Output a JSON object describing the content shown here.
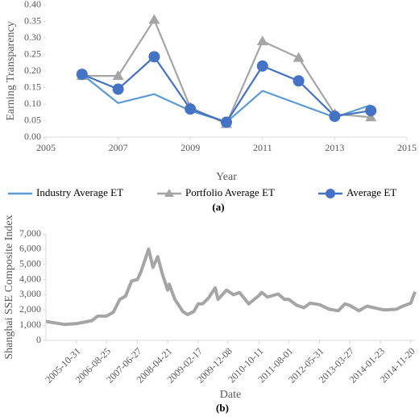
{
  "chart_data": [
    {
      "type": "line",
      "xlabel": "Year",
      "ylabel": "Earning Transparency",
      "caption": "(a)",
      "x": [
        2006,
        2007,
        2008,
        2009,
        2010,
        2011,
        2012,
        2013,
        2014
      ],
      "series": [
        {
          "name": "Industry Average ET",
          "color": "#5b9bd5",
          "values": [
            0.19,
            0.103,
            0.13,
            0.08,
            0.045,
            0.14,
            0.1,
            0.06,
            0.097
          ]
        },
        {
          "name": "Portfolio Average ET",
          "color": "#a5a5a5",
          "marker": "triangle",
          "values": [
            0.185,
            0.185,
            0.355,
            0.09,
            0.04,
            0.29,
            0.24,
            0.07,
            0.06
          ]
        },
        {
          "name": "Average ET",
          "color": "#4472c4",
          "marker": "circle",
          "values": [
            0.19,
            0.145,
            0.243,
            0.085,
            0.045,
            0.215,
            0.17,
            0.063,
            0.08
          ]
        }
      ],
      "xlim": [
        2005,
        2015
      ],
      "xticks": [
        2005,
        2007,
        2009,
        2011,
        2013,
        2015
      ],
      "ylim": [
        0,
        0.4
      ],
      "yticks": [
        {
          "value": 0,
          "label": "0.00"
        },
        {
          "value": 0.05,
          "label": "0.05"
        },
        {
          "value": 0.1,
          "label": "0.10"
        },
        {
          "value": 0.15,
          "label": "0.15"
        },
        {
          "value": 0.2,
          "label": "0.20"
        },
        {
          "value": 0.25,
          "label": "0.25"
        },
        {
          "value": 0.3,
          "label": "0.30"
        },
        {
          "value": 0.35,
          "label": "0.35"
        },
        {
          "value": 0.4,
          "label": "0.40"
        }
      ],
      "legend": "bottom"
    },
    {
      "type": "line",
      "xlabel": "Date",
      "ylabel": "Shanghai SSE Composite Index",
      "caption": "(b)",
      "color": "#a5a5a5",
      "x": [
        "2005-01-04",
        "2005-04-01",
        "2005-07-01",
        "2005-10-31",
        "2006-01-04",
        "2006-04-03",
        "2006-06-01",
        "2006-08-25",
        "2006-11-01",
        "2007-01-04",
        "2007-03-01",
        "2007-05-01",
        "2007-06-27",
        "2007-08-01",
        "2007-10-16",
        "2007-11-28",
        "2008-01-14",
        "2008-03-03",
        "2008-04-21",
        "2008-05-06",
        "2008-07-01",
        "2008-09-18",
        "2008-11-04",
        "2009-01-05",
        "2009-02-17",
        "2009-04-01",
        "2009-06-01",
        "2009-08-04",
        "2009-09-01",
        "2009-11-24",
        "2009-12-08",
        "2010-02-01",
        "2010-04-01",
        "2010-07-02",
        "2010-10-11",
        "2010-11-08",
        "2011-01-04",
        "2011-04-18",
        "2011-06-20",
        "2011-08-01",
        "2011-10-21",
        "2011-12-28",
        "2012-03-01",
        "2012-05-31",
        "2012-09-03",
        "2012-12-03",
        "2013-02-06",
        "2013-03-27",
        "2013-06-25",
        "2013-09-12",
        "2014-01-23",
        "2014-03-11",
        "2014-07-01",
        "2014-09-01",
        "2014-11-20",
        "2014-12-31"
      ],
      "values": [
        1243,
        1150,
        1050,
        1100,
        1180,
        1300,
        1600,
        1600,
        1850,
        2700,
        2900,
        3900,
        4000,
        4500,
        6000,
        4800,
        5500,
        4300,
        3300,
        3700,
        2700,
        1900,
        1700,
        1900,
        2400,
        2400,
        2800,
        3450,
        2700,
        3300,
        3250,
        3000,
        3150,
        2400,
        2950,
        3150,
        2850,
        3050,
        2700,
        2700,
        2300,
        2150,
        2450,
        2350,
        2050,
        1950,
        2400,
        2300,
        1950,
        2250,
        2050,
        2000,
        2050,
        2250,
        2450,
        3200
      ],
      "xticks": [
        "2005-10-31",
        "2006-08-25",
        "2007-06-27",
        "2008-04-21",
        "2009-02-17",
        "2009-12-08",
        "2010-10-11",
        "2011-08-01",
        "2012-05-31",
        "2013-03-27",
        "2014-01-23",
        "2014-11-20"
      ],
      "ylim": [
        0,
        7000
      ],
      "yticks": [
        0,
        {
          "value": 1000,
          "label": "1,000"
        },
        {
          "value": 2000,
          "label": "2,000"
        },
        {
          "value": 3000,
          "label": "3,000"
        },
        {
          "value": 4000,
          "label": "4,000"
        },
        {
          "value": 5000,
          "label": "5,000"
        },
        {
          "value": 6000,
          "label": "6,000"
        },
        {
          "value": 7000,
          "label": "7,000"
        }
      ]
    }
  ]
}
